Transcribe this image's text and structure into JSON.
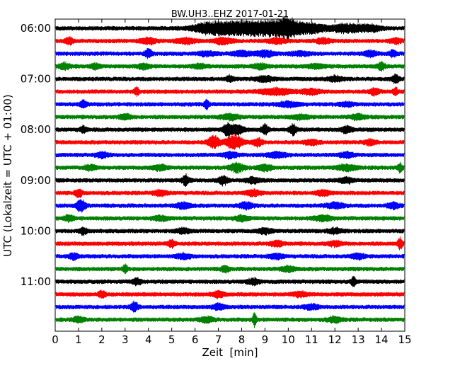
{
  "chart_data": {
    "type": "line",
    "title": "BW.UH3..EHZ 2017-01-21",
    "xlabel": "Zeit  [min]",
    "ylabel": "UTC (Lokalzeit = UTC + 01:00)",
    "xlim": [
      0,
      15
    ],
    "x_ticks": [
      "0",
      "1",
      "2",
      "3",
      "4",
      "5",
      "6",
      "7",
      "8",
      "9",
      "10",
      "11",
      "12",
      "13",
      "14",
      "15"
    ],
    "y_ticks": [
      "06:00",
      "07:00",
      "08:00",
      "09:00",
      "10:00",
      "11:00"
    ],
    "colors": [
      "#000000",
      "#ff0000",
      "#0000ff",
      "#008000"
    ],
    "series": [
      {
        "row_start": "06:00",
        "color": "#000000",
        "events": [
          [
            6.5,
            0.9,
            1.4
          ],
          [
            7.5,
            1.0,
            1.6
          ],
          [
            8.5,
            1.0,
            1.6
          ],
          [
            9.5,
            1.1,
            1.6
          ],
          [
            10.0,
            1.2,
            1.0
          ],
          [
            11.0,
            0.9,
            1.4
          ],
          [
            12.5,
            0.8,
            1.2
          ],
          [
            13.5,
            0.6,
            1.0
          ]
        ]
      },
      {
        "row_start": "06:15",
        "color": "#ff0000",
        "events": [
          [
            0.6,
            0.6,
            0.4
          ],
          [
            4.0,
            0.6,
            0.6
          ],
          [
            5.6,
            0.5,
            0.8
          ],
          [
            7.2,
            0.6,
            0.8
          ],
          [
            9.5,
            0.5,
            0.8
          ],
          [
            11.5,
            0.5,
            0.6
          ],
          [
            14.6,
            0.5,
            0.5
          ]
        ]
      },
      {
        "row_start": "06:30",
        "color": "#0000ff",
        "events": [
          [
            4.0,
            0.9,
            0.3
          ],
          [
            6.5,
            0.4,
            0.8
          ],
          [
            8.0,
            0.5,
            0.8
          ],
          [
            9.0,
            0.6,
            0.8
          ],
          [
            10.5,
            0.4,
            0.8
          ],
          [
            13.5,
            0.5,
            0.6
          ],
          [
            14.5,
            0.6,
            0.3
          ]
        ]
      },
      {
        "row_start": "06:45",
        "color": "#008000",
        "events": [
          [
            0.4,
            0.6,
            0.5
          ],
          [
            1.7,
            0.5,
            0.4
          ],
          [
            3.8,
            0.5,
            0.5
          ],
          [
            6.2,
            0.4,
            0.6
          ],
          [
            8.8,
            0.5,
            0.6
          ],
          [
            11.2,
            0.4,
            0.7
          ],
          [
            14.0,
            0.8,
            0.3
          ]
        ]
      },
      {
        "row_start": "07:00",
        "color": "#000000",
        "events": [
          [
            7.5,
            0.6,
            0.3
          ],
          [
            9.0,
            0.5,
            0.8
          ],
          [
            12.0,
            0.5,
            0.6
          ],
          [
            14.6,
            0.8,
            0.3
          ]
        ]
      },
      {
        "row_start": "07:15",
        "color": "#ff0000",
        "events": [
          [
            3.5,
            0.8,
            0.2
          ],
          [
            9.5,
            0.6,
            1.4
          ],
          [
            11.0,
            0.5,
            0.8
          ],
          [
            13.7,
            0.7,
            0.4
          ],
          [
            14.6,
            0.7,
            0.2
          ]
        ]
      },
      {
        "row_start": "07:30",
        "color": "#0000ff",
        "events": [
          [
            1.2,
            0.7,
            0.3
          ],
          [
            6.5,
            0.9,
            0.2
          ],
          [
            10.0,
            0.5,
            0.8
          ],
          [
            12.5,
            0.4,
            0.6
          ]
        ]
      },
      {
        "row_start": "07:45",
        "color": "#008000",
        "events": [
          [
            3.0,
            0.5,
            0.5
          ],
          [
            7.5,
            0.5,
            0.8
          ],
          [
            10.5,
            0.4,
            0.8
          ],
          [
            13.0,
            0.5,
            0.6
          ]
        ]
      },
      {
        "row_start": "08:00",
        "color": "#000000",
        "events": [
          [
            1.2,
            0.6,
            0.3
          ],
          [
            7.4,
            1.2,
            0.4
          ],
          [
            7.8,
            0.9,
            0.6
          ],
          [
            9.0,
            1.0,
            0.3
          ],
          [
            10.2,
            1.1,
            0.3
          ],
          [
            12.5,
            0.6,
            0.5
          ]
        ]
      },
      {
        "row_start": "08:15",
        "color": "#ff0000",
        "events": [
          [
            6.8,
            1.2,
            0.5
          ],
          [
            7.7,
            1.4,
            0.7
          ],
          [
            8.7,
            0.8,
            0.4
          ],
          [
            11.0,
            0.5,
            0.6
          ],
          [
            13.5,
            0.5,
            0.5
          ]
        ]
      },
      {
        "row_start": "08:30",
        "color": "#0000ff",
        "events": [
          [
            2.0,
            0.5,
            0.5
          ],
          [
            7.5,
            0.6,
            0.6
          ],
          [
            9.5,
            0.5,
            0.8
          ],
          [
            12.5,
            0.5,
            0.6
          ]
        ]
      },
      {
        "row_start": "08:45",
        "color": "#008000",
        "events": [
          [
            1.5,
            0.5,
            0.5
          ],
          [
            4.5,
            0.5,
            0.6
          ],
          [
            7.8,
            0.9,
            0.6
          ],
          [
            9.0,
            0.6,
            0.6
          ],
          [
            12.5,
            0.6,
            0.8
          ],
          [
            14.8,
            0.9,
            0.2
          ]
        ]
      },
      {
        "row_start": "09:00",
        "color": "#000000",
        "events": [
          [
            5.6,
            1.0,
            0.3
          ],
          [
            7.2,
            0.9,
            0.4
          ],
          [
            8.5,
            0.6,
            0.6
          ],
          [
            12.5,
            0.5,
            0.6
          ]
        ]
      },
      {
        "row_start": "09:15",
        "color": "#ff0000",
        "events": [
          [
            1.0,
            0.8,
            0.3
          ],
          [
            4.5,
            0.5,
            0.6
          ],
          [
            8.5,
            0.6,
            0.6
          ],
          [
            11.5,
            0.5,
            0.6
          ]
        ]
      },
      {
        "row_start": "09:30",
        "color": "#0000ff",
        "events": [
          [
            1.1,
            1.3,
            0.4
          ],
          [
            5.5,
            0.6,
            0.6
          ],
          [
            8.2,
            0.6,
            0.6
          ],
          [
            12.0,
            0.5,
            0.8
          ],
          [
            14.5,
            0.6,
            0.5
          ]
        ]
      },
      {
        "row_start": "09:45",
        "color": "#008000",
        "events": [
          [
            0.6,
            0.6,
            0.4
          ],
          [
            4.5,
            0.5,
            0.6
          ],
          [
            8.0,
            0.5,
            0.6
          ],
          [
            11.5,
            0.5,
            0.8
          ]
        ]
      },
      {
        "row_start": "10:00",
        "color": "#000000",
        "events": [
          [
            1.2,
            0.7,
            0.3
          ],
          [
            5.5,
            0.5,
            0.6
          ],
          [
            9.0,
            0.5,
            0.6
          ],
          [
            12.0,
            0.5,
            0.6
          ]
        ]
      },
      {
        "row_start": "10:15",
        "color": "#ff0000",
        "events": [
          [
            5.0,
            0.7,
            0.3
          ],
          [
            9.5,
            0.6,
            0.5
          ],
          [
            12.0,
            0.5,
            0.6
          ],
          [
            14.8,
            1.2,
            0.2
          ]
        ]
      },
      {
        "row_start": "10:30",
        "color": "#0000ff",
        "events": [
          [
            0.8,
            0.6,
            0.4
          ],
          [
            5.5,
            0.5,
            0.6
          ],
          [
            9.5,
            0.5,
            0.6
          ],
          [
            13.0,
            0.5,
            0.6
          ]
        ]
      },
      {
        "row_start": "10:45",
        "color": "#008000",
        "events": [
          [
            3.0,
            0.8,
            0.2
          ],
          [
            7.3,
            0.7,
            0.3
          ],
          [
            10.0,
            0.5,
            0.6
          ]
        ]
      },
      {
        "row_start": "11:00",
        "color": "#000000",
        "events": [
          [
            3.5,
            0.6,
            0.4
          ],
          [
            8.5,
            0.6,
            0.5
          ],
          [
            12.8,
            1.0,
            0.2
          ]
        ]
      },
      {
        "row_start": "11:15",
        "color": "#ff0000",
        "events": [
          [
            2.0,
            0.7,
            0.3
          ],
          [
            7.0,
            0.6,
            0.5
          ],
          [
            10.5,
            0.5,
            0.6
          ]
        ]
      },
      {
        "row_start": "11:30",
        "color": "#0000ff",
        "events": [
          [
            3.4,
            1.0,
            0.3
          ],
          [
            7.0,
            0.6,
            0.5
          ],
          [
            11.0,
            0.5,
            0.6
          ]
        ]
      },
      {
        "row_start": "11:45",
        "color": "#008000",
        "events": [
          [
            1.0,
            0.5,
            0.5
          ],
          [
            6.5,
            0.5,
            0.6
          ],
          [
            8.55,
            1.4,
            0.15
          ],
          [
            12.0,
            0.5,
            0.6
          ]
        ]
      }
    ]
  }
}
